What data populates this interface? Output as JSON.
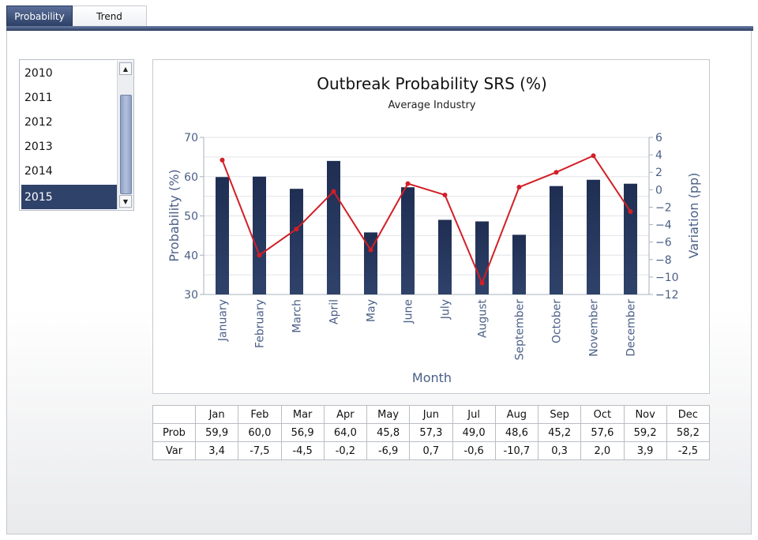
{
  "tabs": [
    {
      "label": "Probability",
      "active": true
    },
    {
      "label": "Trend",
      "active": false
    }
  ],
  "years": [
    "2010",
    "2011",
    "2012",
    "2013",
    "2014",
    "2015"
  ],
  "selected_year": "2015",
  "scroll_icons": {
    "up": "▲",
    "down": "▼"
  },
  "colors": {
    "bar": "#2f426a",
    "line": "#d21f26",
    "accent": "#2f426a",
    "axis_text": "#4a5f86"
  },
  "chart_data": {
    "type": "bar",
    "title": "Outbreak Probability SRS (%)",
    "subtitle": "Average Industry",
    "xlabel": "Month",
    "ylabel": "Probability (%)",
    "y2label": "Variation (pp)",
    "ylim": [
      30,
      70
    ],
    "y2lim": [
      -12,
      6
    ],
    "yticks": [
      "30",
      "40",
      "50",
      "60",
      "70"
    ],
    "y2ticks": [
      "−12",
      "−10",
      "−8",
      "−6",
      "−4",
      "−2",
      "0",
      "2",
      "4",
      "6"
    ],
    "categories": [
      "January",
      "February",
      "March",
      "April",
      "May",
      "June",
      "July",
      "August",
      "September",
      "October",
      "November",
      "December"
    ],
    "series": [
      {
        "type": "bar",
        "axis": "left",
        "values": [
          59.9,
          60.0,
          56.9,
          64.0,
          45.8,
          57.3,
          49.0,
          48.6,
          45.2,
          57.6,
          59.2,
          58.2
        ]
      },
      {
        "type": "line",
        "axis": "right",
        "values": [
          3.4,
          -7.5,
          -4.5,
          -0.2,
          -6.9,
          0.7,
          -0.6,
          -10.7,
          0.3,
          2.0,
          3.9,
          -2.5
        ]
      }
    ],
    "grid": true
  },
  "table": {
    "header": [
      "Jan",
      "Feb",
      "Mar",
      "Apr",
      "May",
      "Jun",
      "Jul",
      "Aug",
      "Sep",
      "Oct",
      "Nov",
      "Dec"
    ],
    "rows": [
      {
        "label": "Prob",
        "cells": [
          "59,9",
          "60,0",
          "56,9",
          "64,0",
          "45,8",
          "57,3",
          "49,0",
          "48,6",
          "45,2",
          "57,6",
          "59,2",
          "58,2"
        ]
      },
      {
        "label": "Var",
        "cells": [
          "3,4",
          "-7,5",
          "-4,5",
          "-0,2",
          "-6,9",
          "0,7",
          "-0,6",
          "-10,7",
          "0,3",
          "2,0",
          "3,9",
          "-2,5"
        ]
      }
    ]
  }
}
